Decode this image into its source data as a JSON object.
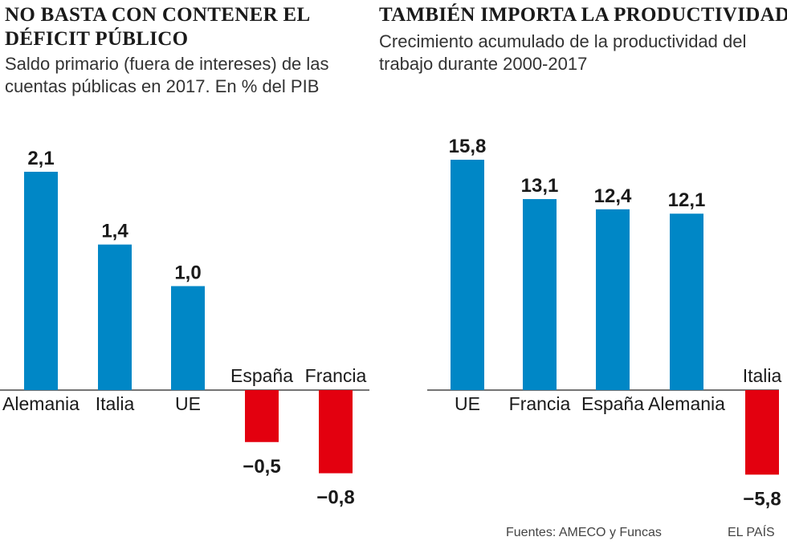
{
  "credits": {
    "sources": "Fuentes: AMECO  y Funcas",
    "publisher": "EL PAÍS"
  },
  "colors": {
    "positive": "#0087c6",
    "negative": "#e3000f",
    "axis": "#222222"
  },
  "chart_data": [
    {
      "type": "bar",
      "title": "NO BASTA CON CONTENER EL DÉFICIT PÚBLICO",
      "subtitle": "Saldo primario (fuera de intereses) de las cuentas públicas en 2017. En % del PIB",
      "categories": [
        "Alemania",
        "Italia",
        "UE",
        "España",
        "Francia"
      ],
      "values": [
        2.1,
        1.4,
        1.0,
        -0.5,
        -0.8
      ],
      "value_labels": [
        "2,1",
        "1,4",
        "1,0",
        "−0,5",
        "−0,8"
      ],
      "xlabel": "",
      "ylabel": "",
      "ylim": [
        -0.8,
        2.1
      ],
      "grid": false
    },
    {
      "type": "bar",
      "title": "TAMBIÉN IMPORTA LA PRODUCTIVIDAD",
      "subtitle": "Crecimiento acumulado de la productividad del trabajo durante 2000-2017",
      "categories": [
        "UE",
        "Francia",
        "España",
        "Alemania",
        "Italia"
      ],
      "values": [
        15.8,
        13.1,
        12.4,
        12.1,
        -5.8
      ],
      "value_labels": [
        "15,8",
        "13,1",
        "12,4",
        "12,1",
        "−5,8"
      ],
      "xlabel": "",
      "ylabel": "",
      "ylim": [
        -5.8,
        15.8
      ],
      "grid": false
    }
  ]
}
